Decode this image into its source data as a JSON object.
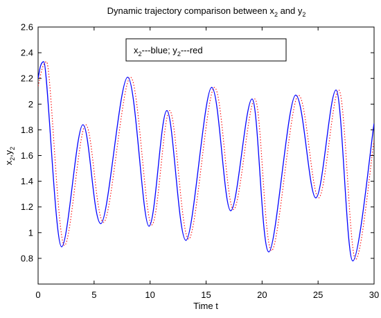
{
  "chart_data": {
    "type": "line",
    "title": {
      "before_1": "Dynamic trajectory comparison between x",
      "sub_1": "2",
      "between": " and y",
      "sub_2": "2"
    },
    "xlabel": "Time t",
    "ylabel": {
      "main_1": "x",
      "sub_1": "2",
      "sep": ",y",
      "sub_2": "2"
    },
    "xlim": [
      0,
      30
    ],
    "ylim": [
      0.6,
      2.6
    ],
    "x_ticks": [
      "0",
      "5",
      "10",
      "15",
      "20",
      "25",
      "30"
    ],
    "y_ticks": [
      "0.8",
      "1",
      "1.2",
      "1.4",
      "1.6",
      "1.8",
      "2",
      "2.2",
      "2.4",
      "2.6"
    ],
    "grid": false,
    "legend": {
      "placement": "top-center",
      "main_1": "x",
      "sub_1": "2",
      "rest_1": "---blue; y",
      "sub_2": "2",
      "rest_2": "---red"
    },
    "series": [
      {
        "key": "x2",
        "color": "#0000ff",
        "style": "solid",
        "x": [
          0,
          0.5,
          2.1,
          4.0,
          5.6,
          8.0,
          9.9,
          11.5,
          13.2,
          15.5,
          17.2,
          19.1,
          20.6,
          23.0,
          24.8,
          26.6,
          28.1,
          30
        ],
        "y": [
          2.2,
          2.33,
          0.89,
          1.84,
          1.07,
          2.21,
          1.05,
          1.95,
          0.94,
          2.13,
          1.17,
          2.04,
          0.85,
          2.07,
          1.27,
          2.11,
          0.78,
          1.85
        ]
      },
      {
        "key": "y2",
        "color": "#ff0000",
        "style": "dotted",
        "x": [
          0,
          0.75,
          2.35,
          4.25,
          5.85,
          8.25,
          10.15,
          11.75,
          13.45,
          15.75,
          17.45,
          19.35,
          20.85,
          23.25,
          25.05,
          26.85,
          28.35,
          30
        ],
        "y": [
          2.14,
          2.33,
          0.9,
          1.84,
          1.08,
          2.21,
          1.06,
          1.95,
          0.95,
          2.13,
          1.18,
          2.04,
          0.86,
          2.07,
          1.27,
          2.11,
          0.79,
          1.72
        ]
      }
    ]
  }
}
